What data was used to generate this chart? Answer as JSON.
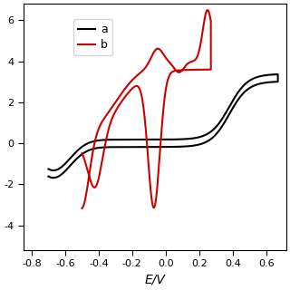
{
  "xlabel": "E/V",
  "xlim": [
    -0.85,
    0.72
  ],
  "ylim": [
    -5.2,
    6.8
  ],
  "yticks": [
    -4,
    -2,
    0,
    2,
    4,
    6
  ],
  "ytick_labels": [
    "-4",
    "-2",
    "0",
    "2",
    "4",
    "6"
  ],
  "xticks": [
    -0.8,
    -0.6,
    -0.4,
    -0.2,
    0.0,
    0.2,
    0.4,
    0.6
  ],
  "xtick_labels": [
    "-0.8",
    "-0.6",
    "-0.4",
    "-0.2",
    "0.0",
    "0.2",
    "0.4",
    "0.6"
  ],
  "curve_a_color": "#000000",
  "curve_b_color": "#cc0000",
  "legend_labels": [
    "a",
    "b"
  ],
  "background_color": "#ffffff",
  "linewidth": 1.5,
  "tick_fontsize": 8,
  "xlabel_fontsize": 10
}
